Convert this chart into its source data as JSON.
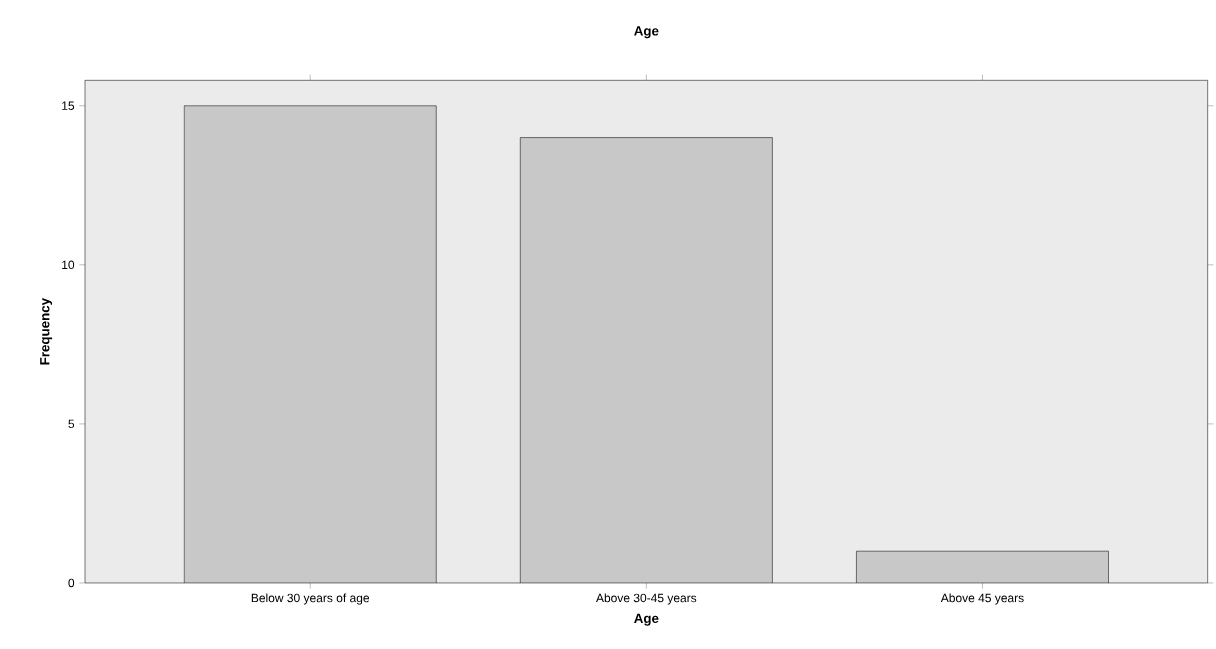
{
  "chart_data": {
    "type": "bar",
    "title": "Age",
    "xlabel": "Age",
    "ylabel": "Frequency",
    "categories": [
      "Below 30 years of age",
      "Above 30-45 years",
      "Above 45 years"
    ],
    "values": [
      15,
      14,
      1
    ],
    "color": "#c8c8c8",
    "ylim": [
      0,
      15.8
    ],
    "yticks": [
      0,
      5,
      10,
      15
    ]
  }
}
